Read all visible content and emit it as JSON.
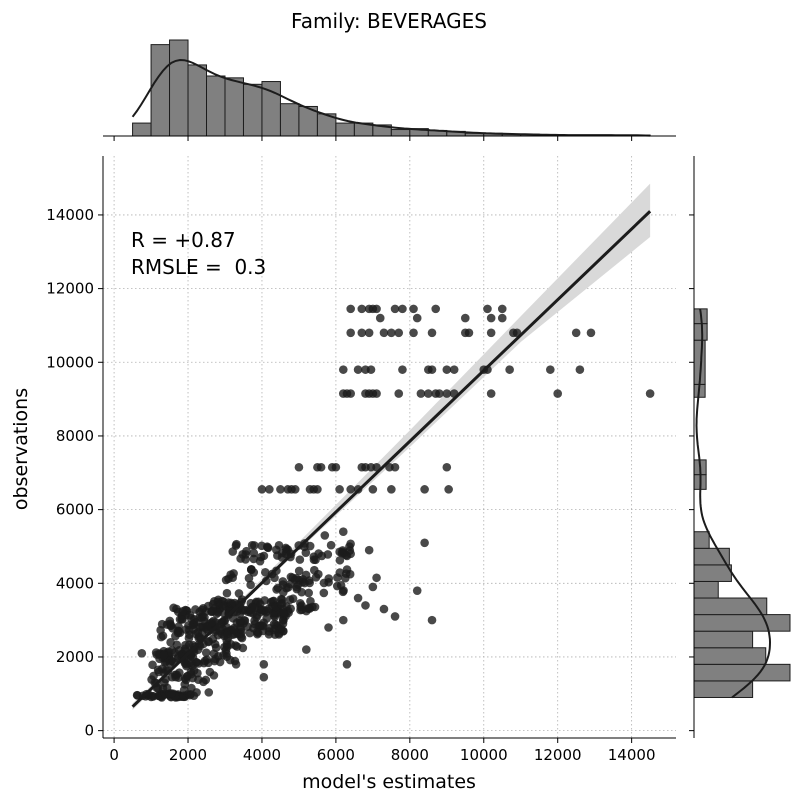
{
  "chart_data": {
    "type": "scatter",
    "title": "Family: BEVERAGES",
    "xlabel": "model's estimates",
    "ylabel": "observations",
    "xlim": [
      -300,
      15200
    ],
    "ylim": [
      -200,
      15600
    ],
    "xticks": [
      0,
      2000,
      4000,
      6000,
      8000,
      10000,
      12000,
      14000
    ],
    "yticks": [
      0,
      2000,
      4000,
      6000,
      8000,
      10000,
      12000,
      14000
    ],
    "grid": true,
    "annotations": [
      "R = +0.87",
      "RMSLE =  0.3"
    ],
    "regression": {
      "x_start": 500,
      "y_start": 650,
      "x_end": 14500,
      "y_end": 14100
    },
    "confidence_band": [
      {
        "x": 500,
        "lo": 560,
        "hi": 740
      },
      {
        "x": 3000,
        "lo": 3000,
        "hi": 3130
      },
      {
        "x": 5000,
        "lo": 4900,
        "hi": 5120
      },
      {
        "x": 8000,
        "lo": 7700,
        "hi": 8150
      },
      {
        "x": 11000,
        "lo": 10550,
        "hi": 11250
      },
      {
        "x": 14500,
        "lo": 13400,
        "hi": 14850
      }
    ],
    "clusters": [
      {
        "xmin": 600,
        "xmax": 2200,
        "ymin": 900,
        "ymax": 1000,
        "n": 45
      },
      {
        "xmin": 1000,
        "xmax": 2600,
        "ymin": 1000,
        "ymax": 2200,
        "n": 80
      },
      {
        "xmin": 1200,
        "xmax": 3500,
        "ymin": 1800,
        "ymax": 2900,
        "n": 90
      },
      {
        "xmin": 1500,
        "xmax": 4700,
        "ymin": 2600,
        "ymax": 3400,
        "n": 160
      },
      {
        "xmin": 2600,
        "xmax": 5500,
        "ymin": 3200,
        "ymax": 3600,
        "n": 70
      },
      {
        "xmin": 3000,
        "xmax": 6400,
        "ymin": 3700,
        "ymax": 4400,
        "n": 60
      },
      {
        "xmin": 3200,
        "xmax": 6500,
        "ymin": 4600,
        "ymax": 5100,
        "n": 55
      }
    ],
    "points": [
      [
        750,
        2100
      ],
      [
        1100,
        1300
      ],
      [
        2700,
        1500
      ],
      [
        3300,
        1800
      ],
      [
        4050,
        1800
      ],
      [
        4050,
        1450
      ],
      [
        6300,
        1800
      ],
      [
        5200,
        2200
      ],
      [
        5800,
        2800
      ],
      [
        6200,
        3000
      ],
      [
        6800,
        3400
      ],
      [
        7300,
        3300
      ],
      [
        7600,
        3100
      ],
      [
        8200,
        3800
      ],
      [
        8600,
        3000
      ],
      [
        7000,
        3900
      ],
      [
        7100,
        4150
      ],
      [
        6600,
        3600
      ],
      [
        6400,
        4800
      ],
      [
        6900,
        4900
      ],
      [
        8400,
        5100
      ],
      [
        5700,
        5300
      ],
      [
        6200,
        5400
      ],
      [
        4000,
        6550
      ],
      [
        4200,
        6550
      ],
      [
        4500,
        6550
      ],
      [
        4700,
        6550
      ],
      [
        4800,
        6550
      ],
      [
        4900,
        6550
      ],
      [
        5300,
        6550
      ],
      [
        5400,
        6550
      ],
      [
        5500,
        6550
      ],
      [
        6100,
        6550
      ],
      [
        6400,
        6550
      ],
      [
        6600,
        6550
      ],
      [
        7000,
        6550
      ],
      [
        7500,
        6550
      ],
      [
        8400,
        6550
      ],
      [
        9050,
        6550
      ],
      [
        5000,
        7150
      ],
      [
        5500,
        7150
      ],
      [
        5600,
        7150
      ],
      [
        5900,
        7150
      ],
      [
        6000,
        7150
      ],
      [
        6700,
        7150
      ],
      [
        6800,
        7150
      ],
      [
        6950,
        7150
      ],
      [
        7100,
        7150
      ],
      [
        7450,
        7150
      ],
      [
        7600,
        7150
      ],
      [
        9000,
        7150
      ],
      [
        6200,
        9150
      ],
      [
        6300,
        9150
      ],
      [
        6400,
        9150
      ],
      [
        6800,
        9150
      ],
      [
        6900,
        9150
      ],
      [
        7000,
        9150
      ],
      [
        7100,
        9150
      ],
      [
        7700,
        9150
      ],
      [
        8300,
        9150
      ],
      [
        8500,
        9150
      ],
      [
        8700,
        9150
      ],
      [
        8800,
        9150
      ],
      [
        9000,
        9150
      ],
      [
        9200,
        9150
      ],
      [
        10200,
        9150
      ],
      [
        12000,
        9150
      ],
      [
        14500,
        9150
      ],
      [
        6200,
        9800
      ],
      [
        6600,
        9800
      ],
      [
        6800,
        9800
      ],
      [
        6950,
        9800
      ],
      [
        7800,
        9800
      ],
      [
        8500,
        9800
      ],
      [
        8600,
        9800
      ],
      [
        9000,
        9800
      ],
      [
        9200,
        9800
      ],
      [
        10000,
        9800
      ],
      [
        10100,
        9800
      ],
      [
        10700,
        9800
      ],
      [
        11800,
        9800
      ],
      [
        12600,
        9800
      ],
      [
        6400,
        10800
      ],
      [
        6700,
        10800
      ],
      [
        6900,
        10800
      ],
      [
        7300,
        10800
      ],
      [
        7500,
        10800
      ],
      [
        7700,
        10800
      ],
      [
        8100,
        10800
      ],
      [
        8600,
        10800
      ],
      [
        9500,
        10800
      ],
      [
        9600,
        10800
      ],
      [
        10200,
        10800
      ],
      [
        10800,
        10800
      ],
      [
        10900,
        10800
      ],
      [
        12500,
        10800
      ],
      [
        12900,
        10800
      ],
      [
        6400,
        11450
      ],
      [
        6700,
        11450
      ],
      [
        6900,
        11450
      ],
      [
        7000,
        11450
      ],
      [
        7100,
        11450
      ],
      [
        7600,
        11450
      ],
      [
        7800,
        11450
      ],
      [
        8100,
        11450
      ],
      [
        8700,
        11450
      ],
      [
        10100,
        11450
      ],
      [
        10500,
        11450
      ],
      [
        7200,
        11200
      ],
      [
        8200,
        11200
      ],
      [
        9500,
        11200
      ],
      [
        10200,
        11200
      ],
      [
        10500,
        11200
      ]
    ],
    "top_hist": {
      "bin_edges": [
        500,
        1000,
        1500,
        2000,
        2500,
        3000,
        3500,
        4000,
        4500,
        5000,
        5500,
        6000,
        6500,
        7000,
        7500,
        8000,
        8500,
        9000,
        9500,
        10000,
        10500,
        11000,
        11500,
        12000,
        12500,
        13000,
        13500,
        14000,
        14500
      ],
      "counts": [
        14,
        99,
        104,
        77,
        65,
        63,
        56,
        59,
        35,
        32,
        24,
        14,
        14,
        12,
        7,
        8,
        6,
        5,
        3,
        3,
        2,
        2,
        1,
        1,
        1,
        1,
        1,
        1
      ]
    },
    "right_hist": {
      "bin_edges": [
        900,
        1350,
        1800,
        2250,
        2700,
        3150,
        3600,
        4050,
        4500,
        4950,
        5400,
        6550,
        6950,
        7350,
        9050,
        9400,
        10600,
        11050,
        11450
      ],
      "counts": [
        58,
        95,
        71,
        58,
        95,
        72,
        24,
        37,
        35,
        15,
        0,
        12,
        12,
        0,
        11,
        11,
        13,
        13
      ]
    }
  }
}
